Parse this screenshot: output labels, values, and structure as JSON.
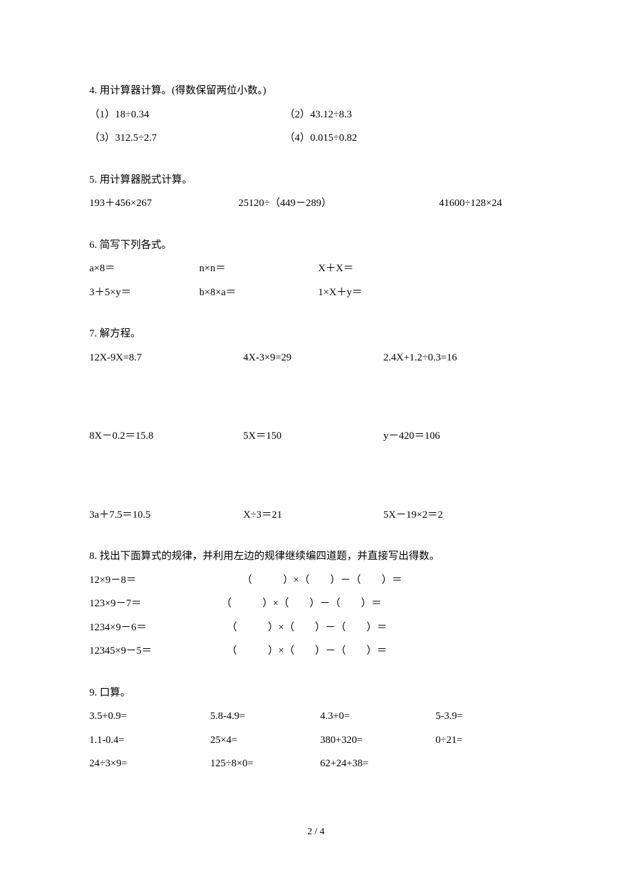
{
  "q4": {
    "title": "4. 用计算器计算。(得数保留两位小数。)",
    "items": [
      "（1）18÷0.34",
      "（2）43.12÷8.3",
      "（3）312.5÷2.7",
      "（4）0.015÷0.82"
    ]
  },
  "q5": {
    "title": "5. 用计算器脱式计算。",
    "items": [
      "193＋456×267",
      "25120÷（449－289）",
      "41600÷128×24"
    ]
  },
  "q6": {
    "title": "6. 简写下列各式。",
    "r1": [
      "a×8＝",
      "n×n＝",
      "X＋X＝"
    ],
    "r2": [
      "3＋5×y＝",
      "b×8×a＝",
      "1×X＋y＝"
    ]
  },
  "q7": {
    "title": "7. 解方程。",
    "r1": [
      "12X-9X=8.7",
      "4X-3×9=29",
      "2.4X+1.2÷0.3=16"
    ],
    "r2": [
      "8X－0.2＝15.8",
      "5X＝150",
      "y－420＝106"
    ],
    "r3": [
      "3a＋7.5＝10.5",
      "X÷3＝21",
      "5X－19×2＝2"
    ]
  },
  "q8": {
    "title": "8. 找出下面算式的规律，并利用左边的规律继续编四道题，并直接写出得数。",
    "rows": [
      {
        "left": "12×9－8＝",
        "indent": 222,
        "right": "（　　　）×（　　）－（　　）＝"
      },
      {
        "left": "123×9－7＝",
        "indent": 192,
        "right": "（　　　）×（　　）－（　　）＝"
      },
      {
        "left": "1234×9－6＝",
        "indent": 200,
        "right": "（　　　）×（　　）－（　　）＝"
      },
      {
        "left": "12345×9－5＝",
        "indent": 200,
        "right": "（　　　）×（　　）－（　　）＝"
      }
    ]
  },
  "q9": {
    "title": "9. 口算。",
    "r1": [
      "3.5+0.9=",
      "5.8-4.9=",
      "4.3+0=",
      "5-3.9="
    ],
    "r2": [
      "1.1-0.4=",
      "25×4=",
      "380+320=",
      "0÷21="
    ],
    "r3": [
      "24÷3×9=",
      "125÷8×0=",
      "62+24+38=",
      ""
    ]
  },
  "page_number": "2 / 4"
}
